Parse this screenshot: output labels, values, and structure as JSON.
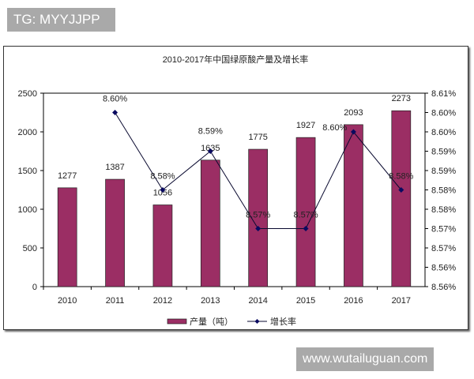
{
  "watermarks": {
    "top": "TG: MYYJJPP",
    "bottom": "www.wutailuguan.com"
  },
  "chart_data": {
    "type": "bar",
    "title": "2010-2017年中国绿原酸产量及增长率",
    "categories": [
      "2010",
      "2011",
      "2012",
      "2013",
      "2014",
      "2015",
      "2016",
      "2017"
    ],
    "series": [
      {
        "name": "产量（吨）",
        "type": "bar",
        "axis": "left",
        "color": "#9b2e64",
        "values": [
          1277,
          1387,
          1056,
          1635,
          1775,
          1927,
          2093,
          2273
        ],
        "labels": [
          "1277",
          "1387",
          "1056",
          "1635",
          "1775",
          "1927",
          "2093",
          "2273"
        ]
      },
      {
        "name": "增长率",
        "type": "line",
        "axis": "right",
        "color": "#0a0a60",
        "values": [
          null,
          8.6,
          8.58,
          8.59,
          8.57,
          8.57,
          8.595,
          8.58
        ],
        "labels": [
          "",
          "8.60%",
          "8.58%",
          "8.59%",
          "8.57%",
          "8.57%",
          "8.60%",
          "8.58%"
        ]
      }
    ],
    "left_axis": {
      "ylim": [
        0,
        2500
      ],
      "ticks": [
        "0",
        "500",
        "1000",
        "1500",
        "2000",
        "2500"
      ]
    },
    "right_axis": {
      "ylim": [
        8.555,
        8.605
      ],
      "ticks": [
        "8.56%",
        "8.56%",
        "8.57%",
        "8.57%",
        "8.58%",
        "8.58%",
        "8.59%",
        "8.59%",
        "8.60%",
        "8.60%",
        "8.61%"
      ]
    },
    "legend": "bottom"
  }
}
